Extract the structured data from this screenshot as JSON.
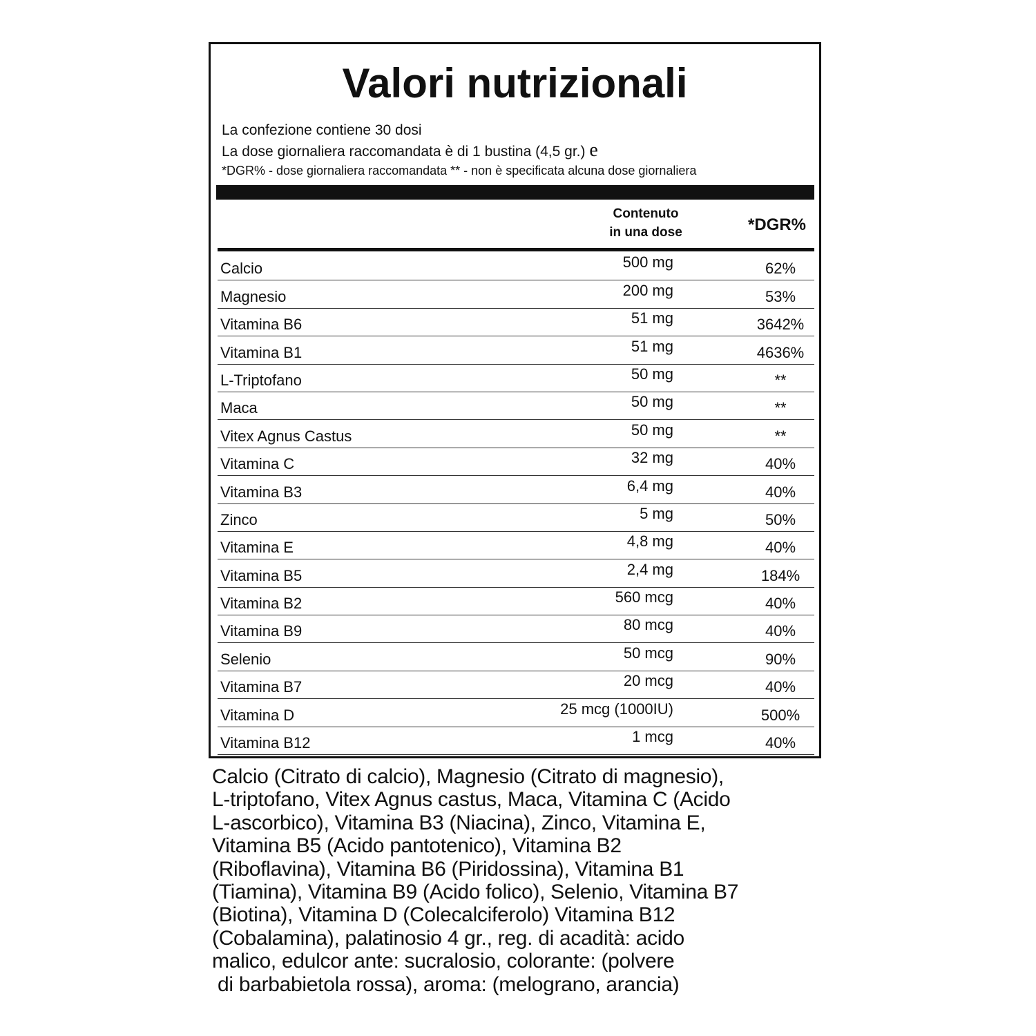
{
  "title": "Valori nutrizionali",
  "intro": {
    "line1": "La confezione contiene 30 dosi",
    "line2": "La dose giornaliera raccomandata è di 1 bustina (4,5 gr.)",
    "line2_mark": "e",
    "line3": "*DGR% - dose giornaliera raccomandata ** - non è specificata alcuna dose giornaliera"
  },
  "table": {
    "headers": {
      "content_line1": "Contenuto",
      "content_line2": "in una dose",
      "dgr": "*DGR%"
    },
    "rows": [
      {
        "name": "Calcio",
        "amount": "500 mg",
        "dgr": "62%"
      },
      {
        "name": "Magnesio",
        "amount": "200 mg",
        "dgr": "53%"
      },
      {
        "name": "Vitamina B6",
        "amount": "51 mg",
        "dgr": "3642%"
      },
      {
        "name": "Vitamina B1",
        "amount": "51 mg",
        "dgr": "4636%"
      },
      {
        "name": "L-Triptofano",
        "amount": "50 mg",
        "dgr": "**"
      },
      {
        "name": "Maca",
        "amount": "50 mg",
        "dgr": "**"
      },
      {
        "name": "Vitex Agnus Castus",
        "amount": "50 mg",
        "dgr": "**"
      },
      {
        "name": "Vitamina C",
        "amount": "32 mg",
        "dgr": "40%"
      },
      {
        "name": "Vitamina B3",
        "amount": "6,4 mg",
        "dgr": "40%"
      },
      {
        "name": "Zinco",
        "amount": "5 mg",
        "dgr": "50%"
      },
      {
        "name": "Vitamina E",
        "amount": "4,8 mg",
        "dgr": "40%"
      },
      {
        "name": "Vitamina B5",
        "amount": "2,4 mg",
        "dgr": "184%"
      },
      {
        "name": "Vitamina B2",
        "amount": "560 mcg",
        "dgr": "40%"
      },
      {
        "name": "Vitamina B9",
        "amount": "80 mcg",
        "dgr": "40%"
      },
      {
        "name": "Selenio",
        "amount": "50 mcg",
        "dgr": "90%"
      },
      {
        "name": "Vitamina B7",
        "amount": "20 mcg",
        "dgr": "40%"
      },
      {
        "name": "Vitamina D",
        "amount": "25 mcg (1000IU)",
        "dgr": "500%"
      },
      {
        "name": "Vitamina B12",
        "amount": "1 mcg",
        "dgr": "40%"
      }
    ]
  },
  "ingredients": [
    "Calcio (Citrato di calcio), Magnesio (Citrato di magnesio),",
    "L-triptofano, Vitex Agnus castus, Maca, Vitamina C (Acido",
    "L-ascorbico), Vitamina B3 (Niacina), Zinco, Vitamina E,",
    "Vitamina B5 (Acido pantotenico), Vitamina B2",
    "(Riboflavina), Vitamina B6 (Piridossina), Vitamina B1",
    "(Tiamina), Vitamina B9 (Acido folico), Selenio, Vitamina B7",
    "(Biotina), Vitamina D (Colecalciferolo) Vitamina B12",
    "(Cobalamina), palatinosio 4 gr., reg. di acadità: acido",
    "malico, edulcor ante: sucralosio, colorante: (polvere",
    " di barbabietola rossa), aroma: (melograno, arancia)"
  ]
}
